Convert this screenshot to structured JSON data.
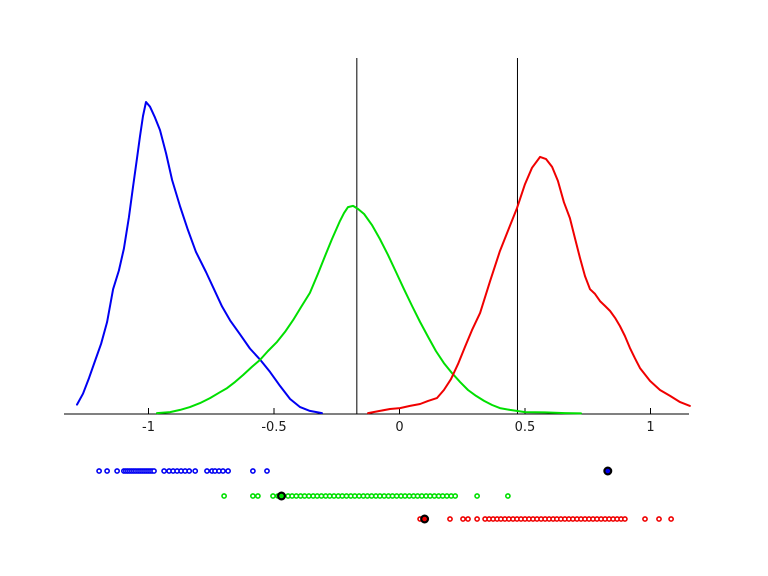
{
  "figure": {
    "background": "#ffffff",
    "axis_color": "#000000"
  },
  "chart_data": {
    "type": "line",
    "title": "",
    "xlabel": "",
    "ylabel": "",
    "description": "Three kernel density estimate curves (blue, green, red) over a single x-axis, two vertical black reference lines, and per-series rug/strip dot plots below the axis; each series has one larger black-ringed highlight marker.",
    "xlim": [
      -1.336,
      1.153
    ],
    "grid": false,
    "legend": "none",
    "x_ticks": [
      {
        "value": -1.0,
        "label": "-1"
      },
      {
        "value": -0.5,
        "label": "-0.5"
      },
      {
        "value": 0.0,
        "label": "0"
      },
      {
        "value": 0.5,
        "label": "0.5"
      },
      {
        "value": 1.0,
        "label": "1"
      }
    ],
    "vlines": [
      {
        "x": -0.17,
        "color": "#000000"
      },
      {
        "x": 0.47,
        "color": "#000000"
      }
    ],
    "series": [
      {
        "name": "blue-density",
        "color": "#0000F2",
        "peak_x": -1.01,
        "peak_height": 1.0,
        "curve": [
          [
            -1.285,
            0.03
          ],
          [
            -1.261,
            0.065
          ],
          [
            -1.237,
            0.115
          ],
          [
            -1.213,
            0.17
          ],
          [
            -1.189,
            0.225
          ],
          [
            -1.165,
            0.295
          ],
          [
            -1.141,
            0.4
          ],
          [
            -1.118,
            0.46
          ],
          [
            -1.098,
            0.53
          ],
          [
            -1.078,
            0.63
          ],
          [
            -1.062,
            0.725
          ],
          [
            -1.046,
            0.82
          ],
          [
            -1.034,
            0.89
          ],
          [
            -1.022,
            0.955
          ],
          [
            -1.01,
            1.0
          ],
          [
            -0.994,
            0.985
          ],
          [
            -0.974,
            0.95
          ],
          [
            -0.954,
            0.91
          ],
          [
            -0.93,
            0.835
          ],
          [
            -0.906,
            0.75
          ],
          [
            -0.874,
            0.665
          ],
          [
            -0.843,
            0.59
          ],
          [
            -0.811,
            0.52
          ],
          [
            -0.771,
            0.455
          ],
          [
            -0.739,
            0.4
          ],
          [
            -0.707,
            0.345
          ],
          [
            -0.675,
            0.3
          ],
          [
            -0.635,
            0.255
          ],
          [
            -0.596,
            0.21
          ],
          [
            -0.556,
            0.175
          ],
          [
            -0.516,
            0.135
          ],
          [
            -0.476,
            0.09
          ],
          [
            -0.436,
            0.048
          ],
          [
            -0.396,
            0.022
          ],
          [
            -0.357,
            0.01
          ],
          [
            -0.309,
            0.003
          ]
        ],
        "rug": [
          -1.197,
          -1.165,
          -1.125,
          -1.098,
          -1.09,
          -1.082,
          -1.074,
          -1.066,
          -1.058,
          -1.05,
          -1.042,
          -1.034,
          -1.026,
          -1.018,
          -1.01,
          -1.002,
          -0.994,
          -0.986,
          -0.978,
          -0.938,
          -0.918,
          -0.902,
          -0.886,
          -0.87,
          -0.854,
          -0.838,
          -0.814,
          -0.767,
          -0.747,
          -0.735,
          -0.719,
          -0.703,
          -0.683,
          -0.584,
          -0.528
        ],
        "highlight_marker": 0.83
      },
      {
        "name": "green-density",
        "color": "#00DF00",
        "peak_x": -0.2,
        "peak_height": 0.667,
        "curve": [
          [
            -0.966,
            0.003
          ],
          [
            -0.914,
            0.006
          ],
          [
            -0.874,
            0.013
          ],
          [
            -0.835,
            0.022
          ],
          [
            -0.795,
            0.035
          ],
          [
            -0.755,
            0.051
          ],
          [
            -0.715,
            0.07
          ],
          [
            -0.687,
            0.083
          ],
          [
            -0.655,
            0.103
          ],
          [
            -0.623,
            0.125
          ],
          [
            -0.588,
            0.151
          ],
          [
            -0.556,
            0.173
          ],
          [
            -0.524,
            0.202
          ],
          [
            -0.488,
            0.231
          ],
          [
            -0.456,
            0.263
          ],
          [
            -0.424,
            0.301
          ],
          [
            -0.392,
            0.343
          ],
          [
            -0.357,
            0.388
          ],
          [
            -0.325,
            0.449
          ],
          [
            -0.297,
            0.506
          ],
          [
            -0.269,
            0.561
          ],
          [
            -0.237,
            0.619
          ],
          [
            -0.221,
            0.644
          ],
          [
            -0.205,
            0.663
          ],
          [
            -0.185,
            0.667
          ],
          [
            -0.165,
            0.657
          ],
          [
            -0.141,
            0.641
          ],
          [
            -0.11,
            0.606
          ],
          [
            -0.078,
            0.561
          ],
          [
            -0.046,
            0.51
          ],
          [
            -0.014,
            0.455
          ],
          [
            0.018,
            0.4
          ],
          [
            0.05,
            0.346
          ],
          [
            0.082,
            0.295
          ],
          [
            0.114,
            0.247
          ],
          [
            0.145,
            0.202
          ],
          [
            0.177,
            0.163
          ],
          [
            0.209,
            0.131
          ],
          [
            0.241,
            0.103
          ],
          [
            0.273,
            0.077
          ],
          [
            0.305,
            0.058
          ],
          [
            0.337,
            0.042
          ],
          [
            0.369,
            0.029
          ],
          [
            0.4,
            0.019
          ],
          [
            0.44,
            0.013
          ],
          [
            0.5,
            0.006
          ],
          [
            0.58,
            0.005
          ],
          [
            0.659,
            0.003
          ],
          [
            0.723,
            0.002
          ]
        ],
        "rug": [
          -0.699,
          -0.584,
          -0.564,
          -0.504,
          -0.484,
          -0.444,
          -0.428,
          -0.411,
          -0.394,
          -0.378,
          -0.361,
          -0.344,
          -0.328,
          -0.311,
          -0.294,
          -0.278,
          -0.261,
          -0.244,
          -0.228,
          -0.211,
          -0.194,
          -0.178,
          -0.161,
          -0.144,
          -0.128,
          -0.111,
          -0.094,
          -0.078,
          -0.061,
          -0.044,
          -0.028,
          -0.011,
          0.006,
          0.022,
          0.039,
          0.056,
          0.072,
          0.089,
          0.106,
          0.122,
          0.139,
          0.156,
          0.172,
          0.189,
          0.206,
          0.222,
          0.309,
          0.432
        ],
        "highlight_marker": -0.47
      },
      {
        "name": "red-density",
        "color": "#F00000",
        "peak_x": 0.56,
        "peak_height": 0.824,
        "curve": [
          [
            -0.125,
            0.003
          ],
          [
            -0.078,
            0.01
          ],
          [
            -0.038,
            0.016
          ],
          [
            0.002,
            0.019
          ],
          [
            0.042,
            0.026
          ],
          [
            0.082,
            0.032
          ],
          [
            0.114,
            0.042
          ],
          [
            0.149,
            0.051
          ],
          [
            0.177,
            0.077
          ],
          [
            0.205,
            0.112
          ],
          [
            0.233,
            0.16
          ],
          [
            0.261,
            0.215
          ],
          [
            0.289,
            0.269
          ],
          [
            0.321,
            0.324
          ],
          [
            0.361,
            0.426
          ],
          [
            0.4,
            0.522
          ],
          [
            0.44,
            0.603
          ],
          [
            0.468,
            0.66
          ],
          [
            0.5,
            0.737
          ],
          [
            0.528,
            0.789
          ],
          [
            0.56,
            0.824
          ],
          [
            0.584,
            0.817
          ],
          [
            0.608,
            0.792
          ],
          [
            0.631,
            0.747
          ],
          [
            0.655,
            0.679
          ],
          [
            0.679,
            0.628
          ],
          [
            0.699,
            0.564
          ],
          [
            0.719,
            0.5
          ],
          [
            0.739,
            0.442
          ],
          [
            0.759,
            0.4
          ],
          [
            0.779,
            0.385
          ],
          [
            0.799,
            0.362
          ],
          [
            0.819,
            0.346
          ],
          [
            0.839,
            0.33
          ],
          [
            0.859,
            0.308
          ],
          [
            0.878,
            0.282
          ],
          [
            0.898,
            0.25
          ],
          [
            0.918,
            0.212
          ],
          [
            0.938,
            0.179
          ],
          [
            0.958,
            0.147
          ],
          [
            0.998,
            0.106
          ],
          [
            1.038,
            0.077
          ],
          [
            1.078,
            0.058
          ],
          [
            1.118,
            0.038
          ],
          [
            1.157,
            0.026
          ]
        ],
        "rug": [
          0.082,
          0.201,
          0.253,
          0.273,
          0.309,
          0.341,
          0.357,
          0.373,
          0.389,
          0.404,
          0.42,
          0.436,
          0.452,
          0.468,
          0.484,
          0.5,
          0.516,
          0.532,
          0.548,
          0.564,
          0.58,
          0.596,
          0.612,
          0.627,
          0.643,
          0.659,
          0.675,
          0.691,
          0.707,
          0.723,
          0.739,
          0.755,
          0.771,
          0.787,
          0.803,
          0.819,
          0.835,
          0.851,
          0.867,
          0.883,
          0.898,
          0.978,
          1.034,
          1.082
        ],
        "highlight_marker": 0.1
      }
    ]
  }
}
